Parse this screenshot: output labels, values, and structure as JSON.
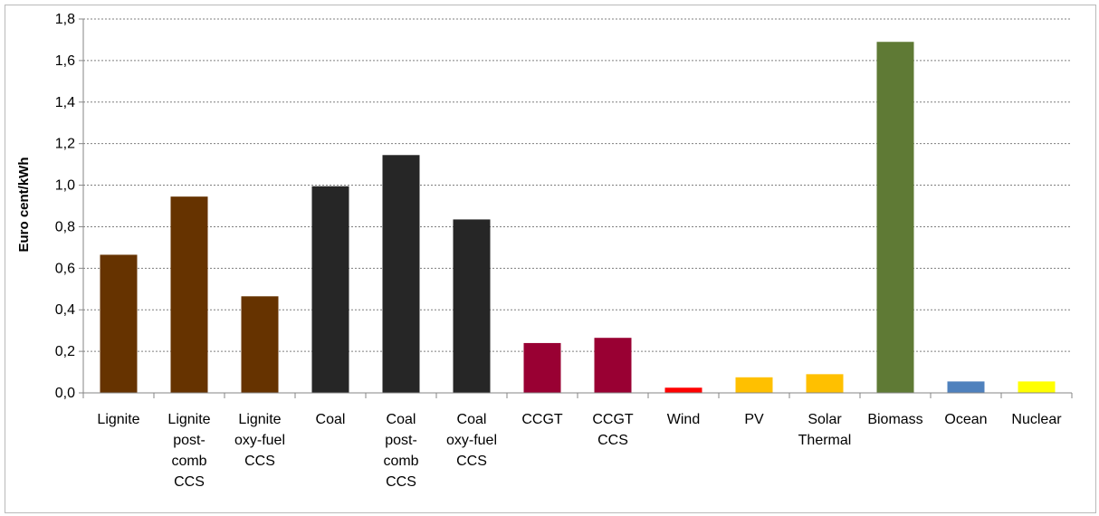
{
  "chart_data": {
    "type": "bar",
    "title": "",
    "xlabel": "",
    "ylabel": "Euro cent/kWh",
    "ylim": [
      0,
      1.8
    ],
    "yticks": [
      "0,0",
      "0,2",
      "0,4",
      "0,6",
      "0,8",
      "1,0",
      "1,2",
      "1,4",
      "1,6",
      "1,8"
    ],
    "grid": true,
    "legend": "none",
    "categories": [
      {
        "label": "Lignite",
        "lines": [
          "Lignite"
        ]
      },
      {
        "label": "Lignite post-comb CCS",
        "lines": [
          "Lignite",
          "post-",
          "comb",
          "CCS"
        ]
      },
      {
        "label": "Lignite oxy-fuel CCS",
        "lines": [
          "Lignite",
          "oxy-fuel",
          "CCS"
        ]
      },
      {
        "label": "Coal",
        "lines": [
          "Coal"
        ]
      },
      {
        "label": "Coal post-comb CCS",
        "lines": [
          "Coal",
          "post-",
          "comb",
          "CCS"
        ]
      },
      {
        "label": "Coal oxy-fuel CCS",
        "lines": [
          "Coal",
          "oxy-fuel",
          "CCS"
        ]
      },
      {
        "label": "CCGT",
        "lines": [
          "CCGT"
        ]
      },
      {
        "label": "CCGT CCS",
        "lines": [
          "CCGT",
          "CCS"
        ]
      },
      {
        "label": "Wind",
        "lines": [
          "Wind"
        ]
      },
      {
        "label": "PV",
        "lines": [
          "PV"
        ]
      },
      {
        "label": "Solar Thermal",
        "lines": [
          "Solar",
          "Thermal"
        ]
      },
      {
        "label": "Biomass",
        "lines": [
          "Biomass"
        ]
      },
      {
        "label": "Ocean",
        "lines": [
          "Ocean"
        ]
      },
      {
        "label": "Nuclear",
        "lines": [
          "Nuclear"
        ]
      }
    ],
    "values": [
      0.665,
      0.945,
      0.465,
      0.995,
      1.145,
      0.835,
      0.24,
      0.265,
      0.025,
      0.075,
      0.09,
      1.69,
      0.055,
      0.055
    ],
    "colors": [
      "#663300",
      "#663300",
      "#663300",
      "#262626",
      "#262626",
      "#262626",
      "#990033",
      "#990033",
      "#ff0000",
      "#ffc000",
      "#ffc000",
      "#5f7a35",
      "#4f81bd",
      "#ffff00"
    ]
  }
}
